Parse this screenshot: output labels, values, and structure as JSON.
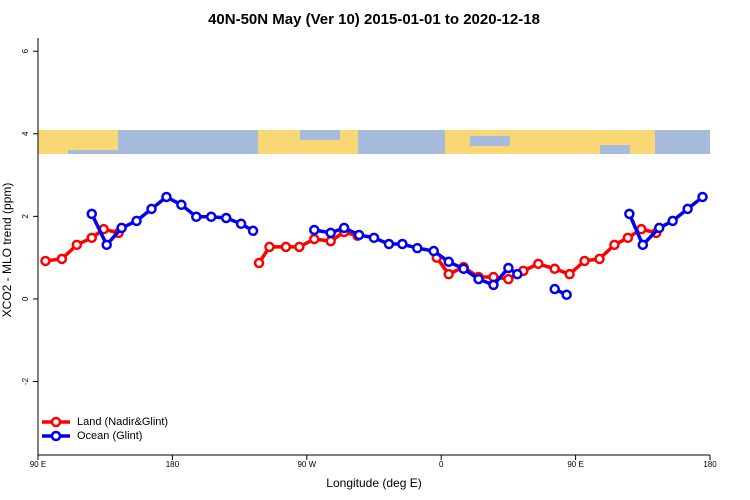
{
  "chart_data": {
    "type": "line",
    "title": "40N-50N May (Ver 10)   2015-01-01 to 2020-12-18",
    "x_label": "Longitude (deg E)",
    "y_label": "XCO2 - MLO trend (ppm)",
    "xlim": [
      90,
      540
    ],
    "ylim": [
      -3.78,
      6.32
    ],
    "xticks": [
      {
        "value": 90,
        "label": "90 E"
      },
      180,
      {
        "value": 270,
        "label": "90 W"
      },
      {
        "value": 360,
        "label": "0"
      },
      {
        "value": 450,
        "label": "90 E"
      },
      {
        "value": 540,
        "label": "180"
      }
    ],
    "yticks": [
      -2,
      0,
      2,
      4,
      6
    ],
    "legend": "bottom-left",
    "series": [
      {
        "name": "Land (Nadir&Glint)",
        "color": "#ff0000",
        "x": [
          95,
          106,
          116,
          126,
          134,
          144,
          null,
          238,
          245,
          256,
          265,
          275,
          286,
          295,
          304,
          null,
          357,
          365,
          375,
          385,
          395,
          405,
          415,
          425,
          436,
          446,
          456,
          466,
          476,
          485,
          494,
          504
        ],
        "values": [
          0.92,
          0.97,
          1.31,
          1.48,
          1.69,
          1.6,
          null,
          0.87,
          1.26,
          1.26,
          1.26,
          1.45,
          1.4,
          1.62,
          1.53,
          null,
          1.0,
          0.6,
          0.77,
          0.53,
          0.53,
          0.48,
          0.68,
          0.85,
          0.73,
          0.6,
          0.92,
          0.97,
          1.31,
          1.48,
          1.69,
          1.6
        ]
      },
      {
        "name": "Ocean (Glint)",
        "color": "#0000ee",
        "x": [
          126,
          136,
          146,
          156,
          166,
          176,
          186,
          196,
          206,
          216,
          226,
          234,
          null,
          275,
          286,
          295,
          305,
          315,
          325,
          334,
          344,
          355,
          365,
          375,
          385,
          395,
          405,
          411,
          null,
          436,
          444,
          null,
          486,
          495,
          506,
          515,
          525,
          535
        ],
        "values": [
          2.06,
          1.31,
          1.72,
          1.89,
          2.18,
          2.47,
          2.28,
          1.99,
          1.99,
          1.96,
          1.82,
          1.65,
          null,
          1.67,
          1.6,
          1.72,
          1.55,
          1.48,
          1.33,
          1.33,
          1.23,
          1.16,
          0.9,
          0.73,
          0.48,
          0.34,
          0.75,
          0.6,
          null,
          0.24,
          0.1,
          null,
          2.06,
          1.31,
          1.72,
          1.89,
          2.18,
          2.47
        ]
      }
    ]
  }
}
